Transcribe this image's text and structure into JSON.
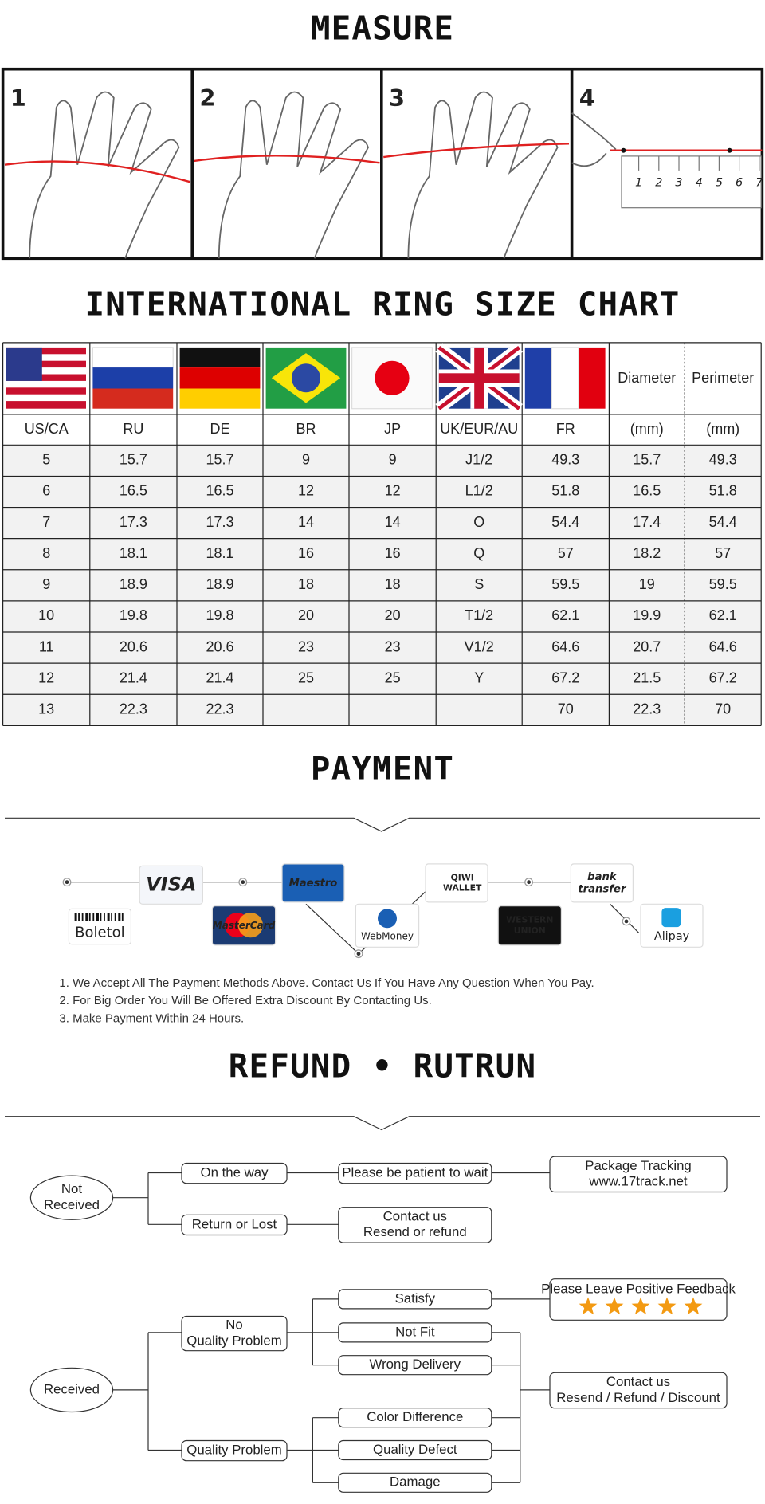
{
  "measure": {
    "title": "MEASURE",
    "steps": [
      "1",
      "2",
      "3",
      "4"
    ],
    "ruler": [
      "1",
      "2",
      "3",
      "4",
      "5",
      "6",
      "7"
    ]
  },
  "size_chart": {
    "title": "INTERNATIONAL RING SIZE CHART",
    "flag_headers": [
      "Diameter",
      "Perimeter"
    ],
    "columns": [
      "US/CA",
      "RU",
      "DE",
      "BR",
      "JP",
      "UK/EUR/AU",
      "FR",
      "(mm)",
      "(mm)"
    ],
    "rows": [
      [
        5,
        15.7,
        15.7,
        9,
        9,
        "J1/2",
        49.3,
        15.7,
        49.3
      ],
      [
        6,
        16.5,
        16.5,
        12,
        12,
        "L1/2",
        51.8,
        16.5,
        51.8
      ],
      [
        7,
        17.3,
        17.3,
        14,
        14,
        "O",
        54.4,
        17.4,
        54.4
      ],
      [
        8,
        18.1,
        18.1,
        16,
        16,
        "Q",
        57,
        18.2,
        57
      ],
      [
        9,
        18.9,
        18.9,
        18,
        18,
        "S",
        59.5,
        19,
        59.5
      ],
      [
        10,
        19.8,
        19.8,
        20,
        20,
        "T1/2",
        62.1,
        19.9,
        62.1
      ],
      [
        11,
        20.6,
        20.6,
        23,
        23,
        "V1/2",
        64.6,
        20.7,
        64.6
      ],
      [
        12,
        21.4,
        21.4,
        25,
        25,
        "Y",
        67.2,
        21.5,
        67.2
      ],
      [
        13,
        22.3,
        22.3,
        null,
        null,
        null,
        70,
        22.3,
        70
      ]
    ]
  },
  "payment": {
    "title": "PAYMENT",
    "methods": [
      [
        "VISA"
      ],
      [
        "Maestro"
      ],
      [
        "QIWI",
        "WALLET"
      ],
      [
        "bank",
        "transfer"
      ],
      [
        "Boletol"
      ],
      [
        "MasterCard"
      ],
      [
        "WebMoney"
      ],
      [
        "WESTERN",
        "UNION"
      ],
      [
        "Alipay"
      ]
    ],
    "notes": [
      "1. We Accept All The Payment Methods Above. Contact Us If You Have Any Question When You Pay.",
      "2. For Big Order You Will Be Offered Extra Discount By Contacting Us.",
      "3. Make Payment Within 24 Hours."
    ]
  },
  "refund": {
    "title": "REFUND • RUTRUN",
    "nodes": [
      [
        "Not",
        "Received"
      ],
      [
        "On the way"
      ],
      [
        "Return or Lost"
      ],
      [
        "Please be patient to wait"
      ],
      [
        "Package Tracking",
        "www.17track.net"
      ],
      [
        "Contact us",
        "Resend or refund"
      ],
      [
        "Received"
      ],
      [
        "No",
        "Quality Problem"
      ],
      [
        "Quality Problem"
      ],
      [
        "Satisfy"
      ],
      [
        "Not Fit"
      ],
      [
        "Wrong Delivery"
      ],
      [
        "Please Leave Positive Feedback"
      ],
      [
        "Contact us",
        "Resend / Refund / Discount"
      ],
      [
        "Color Difference"
      ],
      [
        "Quality Defect"
      ],
      [
        "Damage"
      ]
    ]
  }
}
